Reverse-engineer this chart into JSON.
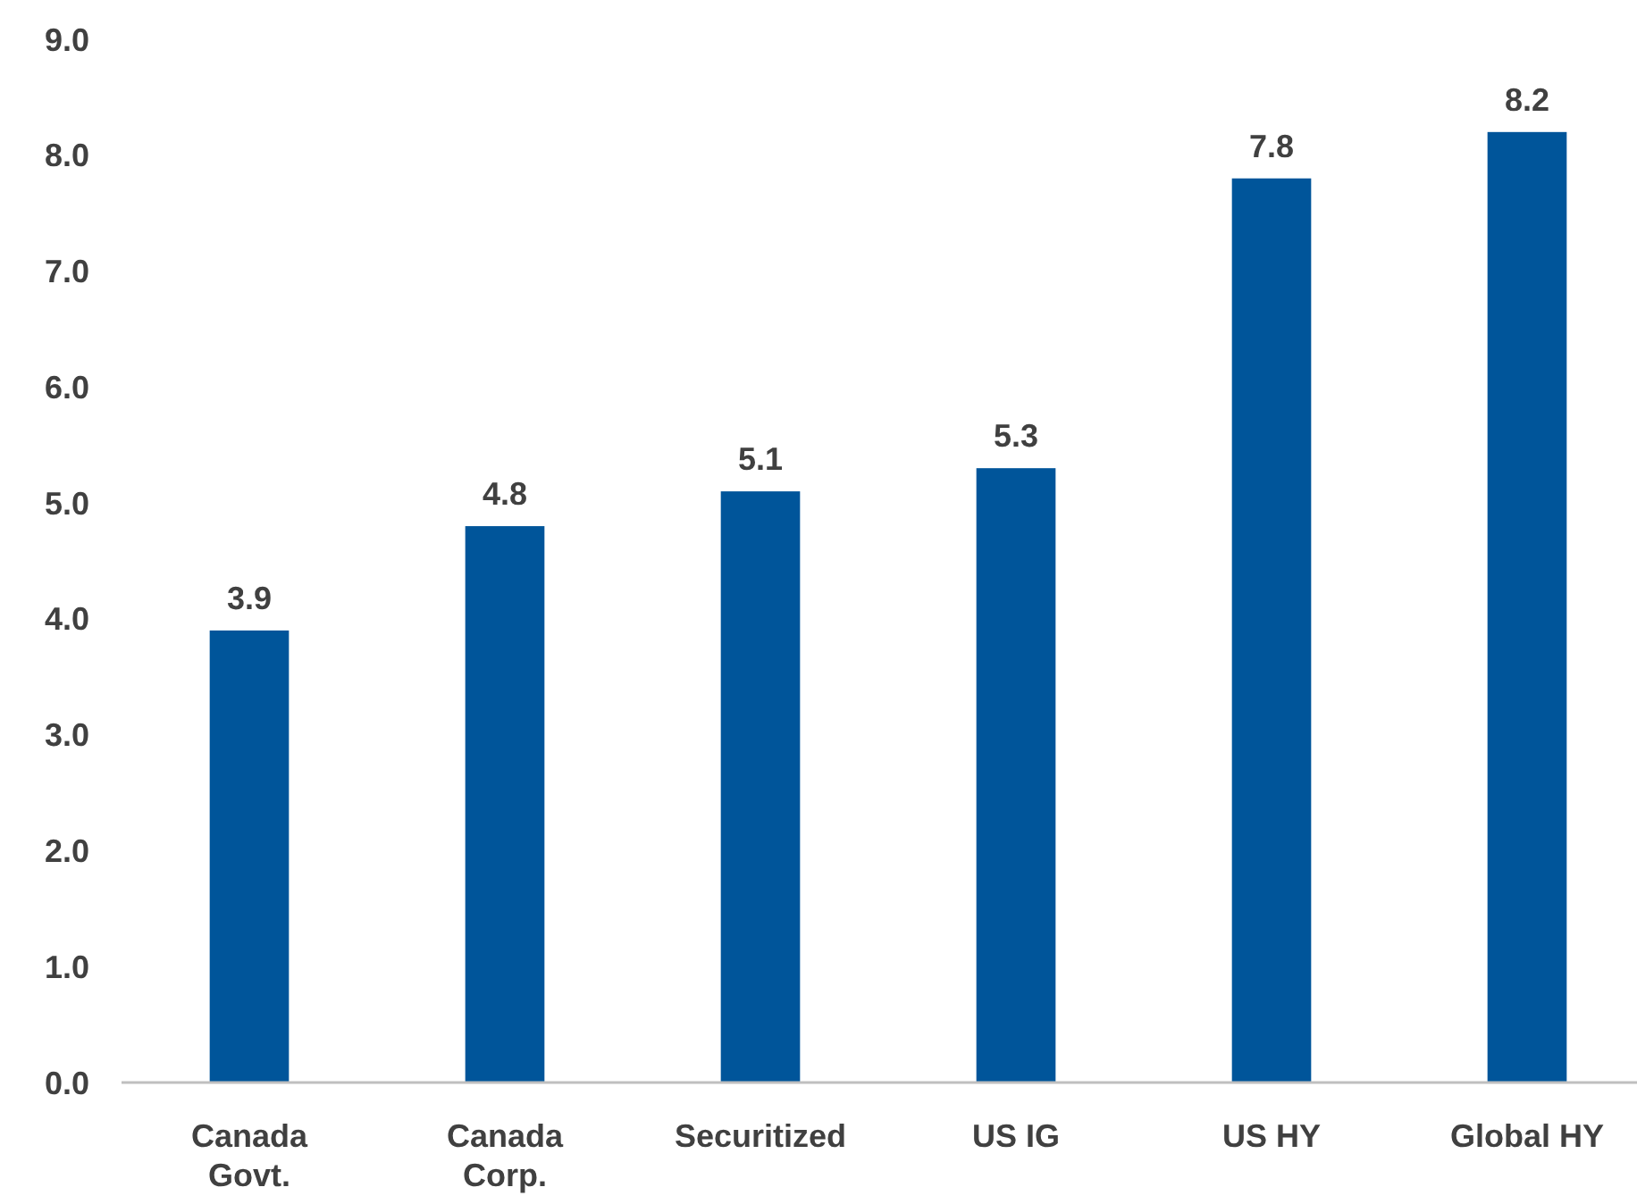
{
  "chart_data": {
    "type": "bar",
    "categories": [
      "Canada Govt.",
      "Canada Corp.",
      "Securitized",
      "US IG",
      "US HY",
      "Global HY"
    ],
    "values": [
      3.9,
      4.8,
      5.1,
      5.3,
      7.8,
      8.2
    ],
    "color": "#00559a",
    "data_labels": true,
    "value_labels": [
      "3.9",
      "4.8",
      "5.1",
      "5.3",
      "7.8",
      "8.2"
    ],
    "ylim": [
      0,
      9
    ],
    "yticks": [
      {
        "value": 0,
        "label": "0.0"
      },
      {
        "value": 1,
        "label": "1.0"
      },
      {
        "value": 2,
        "label": "2.0"
      },
      {
        "value": 3,
        "label": "3.0"
      },
      {
        "value": 4,
        "label": "4.0"
      },
      {
        "value": 5,
        "label": "5.0"
      },
      {
        "value": 6,
        "label": "6.0"
      },
      {
        "value": 7,
        "label": "7.0"
      },
      {
        "value": 8,
        "label": "8.0"
      },
      {
        "value": 9,
        "label": "9.0"
      }
    ],
    "grid": false
  }
}
